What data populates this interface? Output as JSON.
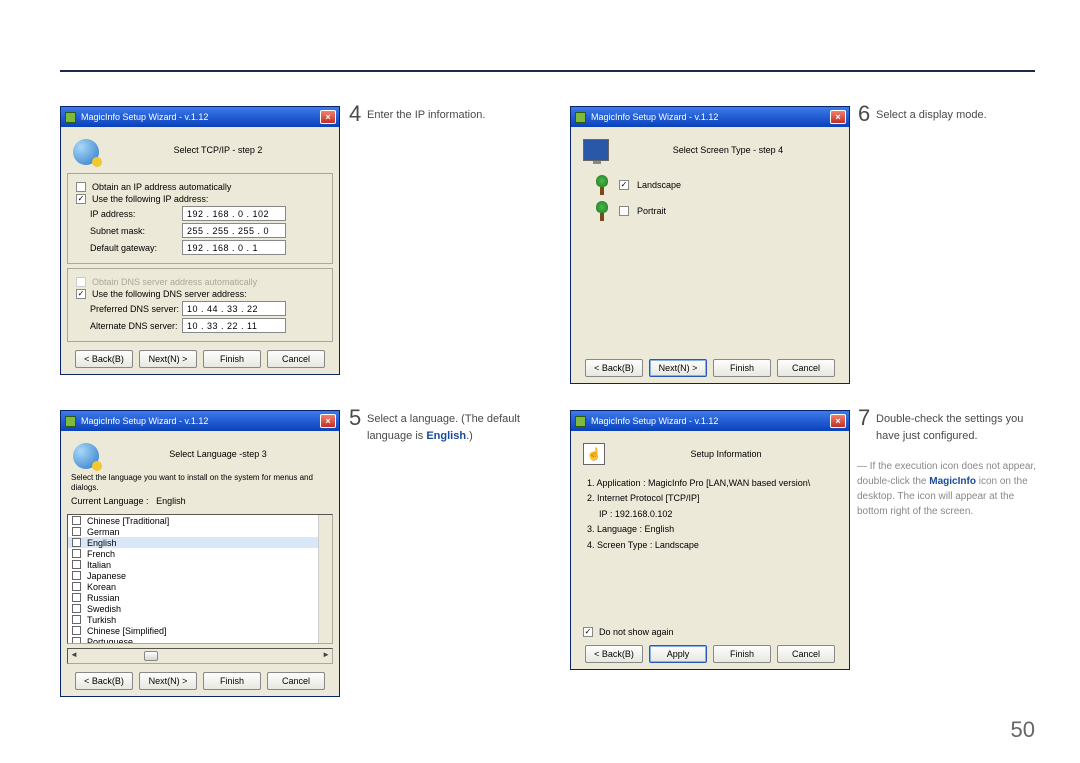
{
  "page_number": "50",
  "window_title": "MagicInfo Setup Wizard - v.1.12",
  "buttons": {
    "back": "< Back(B)",
    "next": "Next(N) >",
    "finish": "Finish",
    "cancel": "Cancel",
    "apply": "Apply"
  },
  "steps": {
    "s4": {
      "num": "4",
      "text": "Enter the IP information."
    },
    "s5": {
      "num": "5",
      "text_a": "Select a language. (The default language is ",
      "text_bold": "English",
      "text_b": ".)"
    },
    "s6": {
      "num": "6",
      "text": "Select a display mode."
    },
    "s7": {
      "num": "7",
      "text": "Double-check the settings you have just configured."
    },
    "note": {
      "a": "If the execution icon does not appear, double-click the ",
      "bold": "MagicInfo",
      "b": " icon on the desktop. The icon will appear at the bottom right of the screen."
    }
  },
  "step4": {
    "title": "Select TCP/IP - step 2",
    "auto_ip": "Obtain an IP address automatically",
    "use_ip": "Use the following IP address:",
    "ip_label": "IP address:",
    "ip_value": "192 . 168 .  0  . 102",
    "mask_label": "Subnet mask:",
    "mask_value": "255 . 255 . 255 .  0",
    "gw_label": "Default gateway:",
    "gw_value": "192 . 168 .  0  .   1",
    "auto_dns": "Obtain DNS server address automatically",
    "use_dns": "Use the following DNS server address:",
    "pdns_label": "Preferred DNS server:",
    "pdns_value": "10 .  44  . 33 . 22",
    "adns_label": "Alternate DNS server:",
    "adns_value": "10 .  33  . 22 . 11"
  },
  "step5": {
    "title": "Select Language -step 3",
    "desc": "Select the language you want to install on the system for menus and dialogs.",
    "current_label": "Current Language :",
    "current_value": "English",
    "langs": [
      "Chinese [Traditional]",
      "German",
      "English",
      "French",
      "Italian",
      "Japanese",
      "Korean",
      "Russian",
      "Swedish",
      "Turkish",
      "Chinese [Simplified]",
      "Portuguese"
    ]
  },
  "step6": {
    "title": "Select Screen Type - step 4",
    "landscape": "Landscape",
    "portrait": "Portrait"
  },
  "step7": {
    "title": "Setup Information",
    "r1": "1. Application  :     MagicInfo Pro [LAN,WAN based version\\",
    "r2": "2. Internet Protocol [TCP/IP]",
    "r2ip": "IP  :     192.168.0.102",
    "r3": "3. Language  :     English",
    "r4": "4. Screen Type  :     Landscape",
    "noshow": "Do not show again"
  }
}
